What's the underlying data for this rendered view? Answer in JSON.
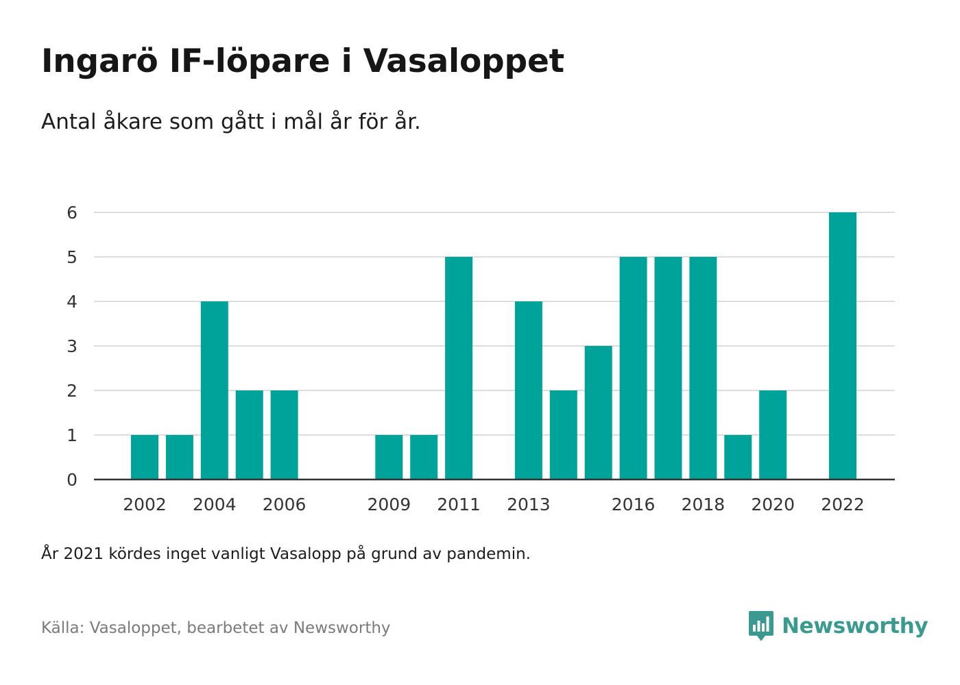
{
  "header": {
    "title": "Ingarö IF-löpare i Vasaloppet",
    "subtitle": "Antal åkare som gått i mål år för år."
  },
  "footer": {
    "note": "År 2021 kördes inget vanligt Vasalopp på grund av pandemin.",
    "source": "Källa: Vasaloppet, bearbetet av Newsworthy",
    "brand": "Newsworthy",
    "brand_icon": "newsworthy-logo-icon"
  },
  "colors": {
    "bar": "#00a39a",
    "grid": "#dddddd",
    "axis": "#333333",
    "brand": "#3a9a90"
  },
  "chart_data": {
    "type": "bar",
    "categories": [
      2002,
      2003,
      2004,
      2005,
      2006,
      2007,
      2008,
      2009,
      2010,
      2011,
      2012,
      2013,
      2014,
      2015,
      2016,
      2017,
      2018,
      2019,
      2020,
      2021,
      2022
    ],
    "values": [
      1,
      1,
      4,
      2,
      2,
      0,
      0,
      1,
      1,
      5,
      0,
      4,
      2,
      3,
      5,
      5,
      5,
      1,
      2,
      0,
      6
    ],
    "xtick_labels": [
      "2002",
      "2004",
      "2006",
      "2009",
      "2011",
      "2013",
      "2016",
      "2018",
      "2020",
      "2022"
    ],
    "ytick_labels": [
      "0",
      "1",
      "2",
      "3",
      "4",
      "5",
      "6"
    ],
    "ylim": [
      0,
      6
    ],
    "xlabel": "",
    "ylabel": "",
    "grid": true,
    "legend": "none"
  }
}
